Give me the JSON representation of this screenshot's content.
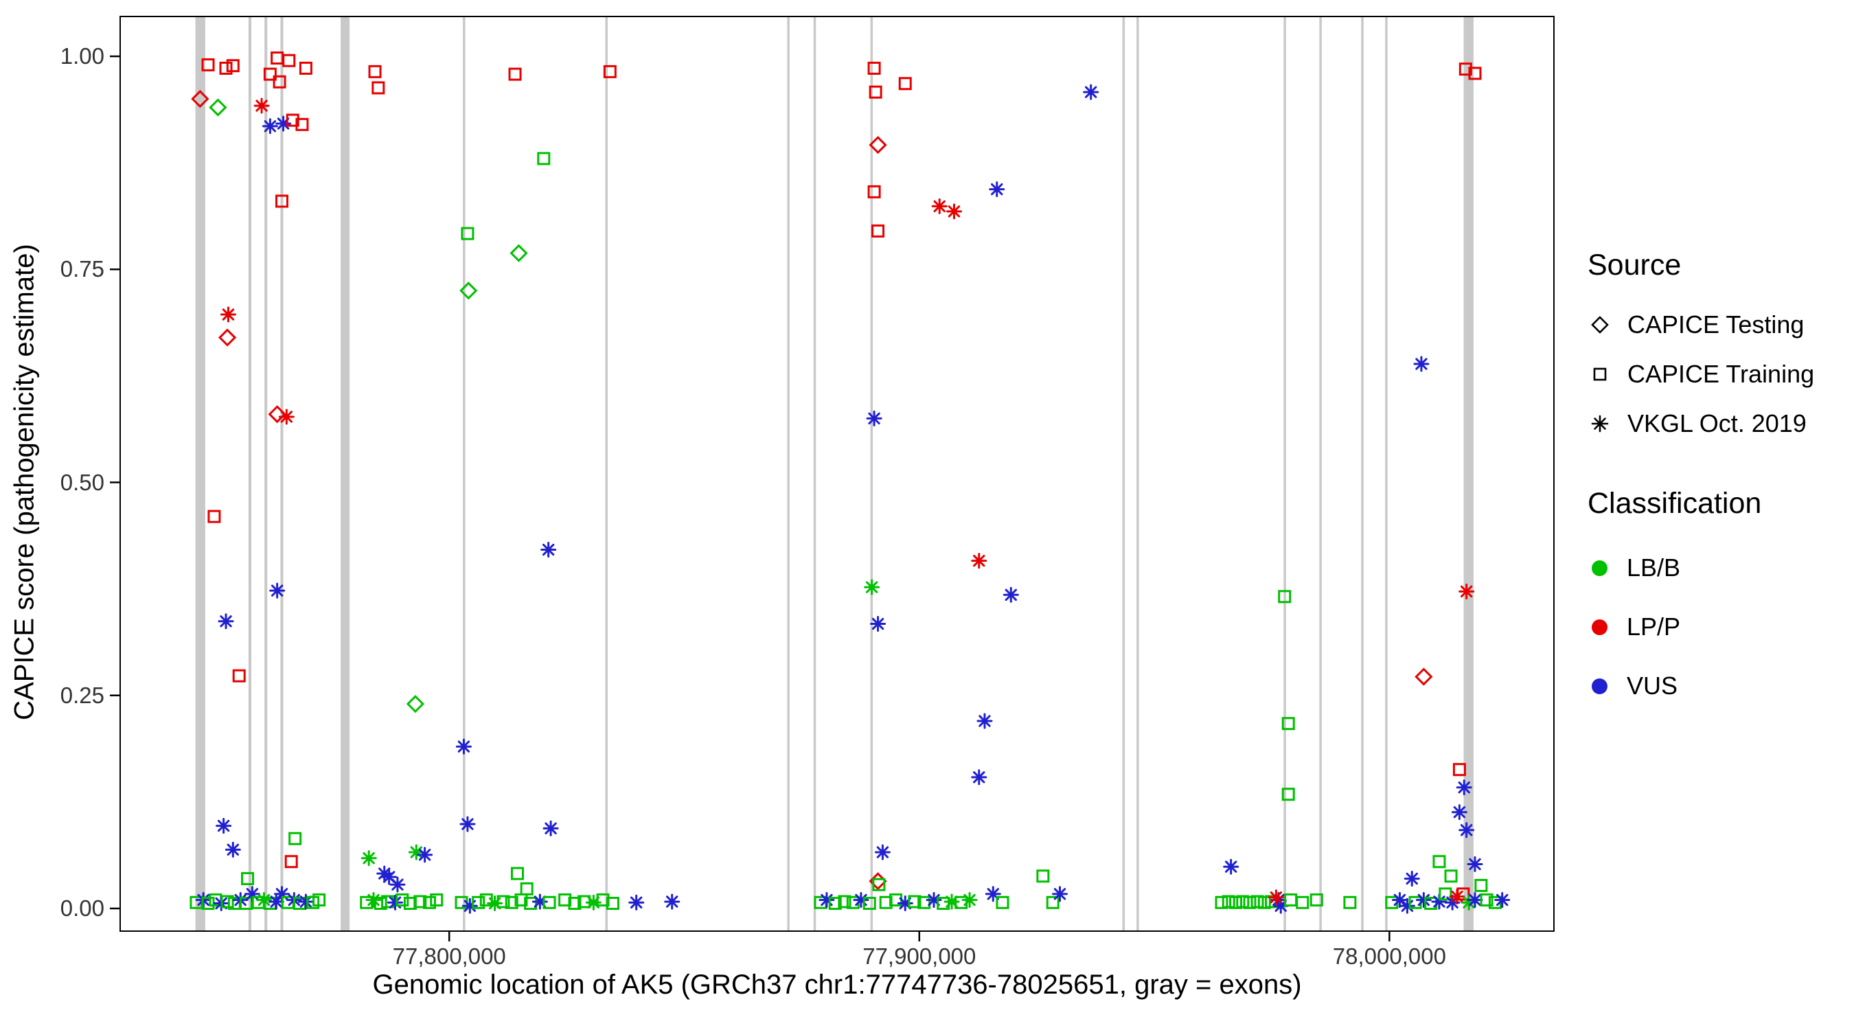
{
  "legend": {
    "source_title": "Source",
    "source_items": [
      {
        "shape": "di",
        "label": "CAPICE Testing"
      },
      {
        "shape": "sq",
        "label": "CAPICE Training"
      },
      {
        "shape": "as",
        "label": "VKGL Oct. 2019"
      }
    ],
    "classification_title": "Classification",
    "classification_items": [
      {
        "color": "g",
        "label": "LB/B"
      },
      {
        "color": "r",
        "label": "LP/P"
      },
      {
        "color": "b",
        "label": "VUS"
      }
    ]
  },
  "colors": {
    "g": "#00C000",
    "r": "#E60000",
    "b": "#2020D0",
    "exon": "#C9C9C9"
  },
  "chart_data": {
    "type": "scatter",
    "title": "",
    "xlabel": "Genomic location of AK5 (GRCh37 chr1:77747736-78025651, gray = exons)",
    "ylabel": "CAPICE score (pathogenicity estimate)",
    "xlim": [
      77730000,
      78035000
    ],
    "ylim": [
      -0.027,
      1.047
    ],
    "grid": false,
    "legend_position": "right",
    "x_ticks": [
      {
        "value": 77800000,
        "label": "77,800,000"
      },
      {
        "value": 77900000,
        "label": "77,900,000"
      },
      {
        "value": 78000000,
        "label": "78,000,000"
      }
    ],
    "y_ticks": [
      {
        "value": 0.0,
        "label": "0.00"
      },
      {
        "value": 0.25,
        "label": "0.25"
      },
      {
        "value": 0.5,
        "label": "0.50"
      },
      {
        "value": 0.75,
        "label": "0.75"
      },
      {
        "value": 1.0,
        "label": "1.00"
      }
    ],
    "exons": [
      [
        77746000,
        77748100
      ],
      [
        77757300,
        77757900
      ],
      [
        77760700,
        77761300
      ],
      [
        77764100,
        77764700
      ],
      [
        77776900,
        77778800
      ],
      [
        77802900,
        77803400
      ],
      [
        77833200,
        77833700
      ],
      [
        77871900,
        77872400
      ],
      [
        77877500,
        77878000
      ],
      [
        77889600,
        77890100
      ],
      [
        77943200,
        77943700
      ],
      [
        77946200,
        77946700
      ],
      [
        77977500,
        77978000
      ],
      [
        77985100,
        77985600
      ],
      [
        77994000,
        77994500
      ],
      [
        77999100,
        77999600
      ],
      [
        78015800,
        78017900
      ]
    ],
    "shape_codes": {
      "di": "CAPICE Testing",
      "sq": "CAPICE Training",
      "as": "VKGL Oct. 2019"
    },
    "color_codes": {
      "g": "LB/B",
      "r": "LP/P",
      "b": "VUS"
    },
    "points": [
      [
        77747000,
        0.95,
        "di",
        "r"
      ],
      [
        77750800,
        0.94,
        "di",
        "g"
      ],
      [
        77748700,
        0.99,
        "sq",
        "r"
      ],
      [
        77752500,
        0.986,
        "sq",
        "r"
      ],
      [
        77754000,
        0.989,
        "sq",
        "r"
      ],
      [
        77760100,
        0.942,
        "as",
        "r"
      ],
      [
        77761900,
        0.979,
        "sq",
        "r"
      ],
      [
        77763400,
        0.998,
        "sq",
        "r"
      ],
      [
        77763900,
        0.97,
        "sq",
        "r"
      ],
      [
        77765900,
        0.995,
        "sq",
        "r"
      ],
      [
        77769500,
        0.986,
        "sq",
        "r"
      ],
      [
        77761900,
        0.918,
        "as",
        "b"
      ],
      [
        77764700,
        0.921,
        "as",
        "b"
      ],
      [
        77766700,
        0.925,
        "sq",
        "r"
      ],
      [
        77768700,
        0.92,
        "sq",
        "r"
      ],
      [
        77764400,
        0.83,
        "sq",
        "r"
      ],
      [
        77753000,
        0.697,
        "as",
        "r"
      ],
      [
        77752800,
        0.67,
        "di",
        "r"
      ],
      [
        77763400,
        0.58,
        "di",
        "r"
      ],
      [
        77765400,
        0.577,
        "as",
        "r"
      ],
      [
        77750000,
        0.46,
        "sq",
        "r"
      ],
      [
        77763400,
        0.373,
        "as",
        "b"
      ],
      [
        77752500,
        0.337,
        "as",
        "b"
      ],
      [
        77755300,
        0.273,
        "sq",
        "r"
      ],
      [
        77752000,
        0.097,
        "as",
        "b"
      ],
      [
        77754000,
        0.069,
        "as",
        "b"
      ],
      [
        77757100,
        0.035,
        "sq",
        "g"
      ],
      [
        77767200,
        0.082,
        "sq",
        "g"
      ],
      [
        77766400,
        0.055,
        "sq",
        "r"
      ],
      [
        77746200,
        0.007,
        "sq",
        "g"
      ],
      [
        77747700,
        0.01,
        "as",
        "b"
      ],
      [
        77748700,
        0.006,
        "sq",
        "g"
      ],
      [
        77750300,
        0.01,
        "sq",
        "g"
      ],
      [
        77751500,
        0.006,
        "as",
        "b"
      ],
      [
        77752800,
        0.008,
        "sq",
        "g"
      ],
      [
        77754300,
        0.006,
        "sq",
        "g"
      ],
      [
        77755600,
        0.01,
        "as",
        "b"
      ],
      [
        77756800,
        0.006,
        "sq",
        "g"
      ],
      [
        77758100,
        0.017,
        "as",
        "b"
      ],
      [
        77759400,
        0.007,
        "sq",
        "g"
      ],
      [
        77760600,
        0.01,
        "as",
        "g"
      ],
      [
        77761900,
        0.006,
        "sq",
        "g"
      ],
      [
        77763200,
        0.008,
        "as",
        "b"
      ],
      [
        77764400,
        0.017,
        "as",
        "b"
      ],
      [
        77765700,
        0.007,
        "sq",
        "g"
      ],
      [
        77767000,
        0.01,
        "as",
        "b"
      ],
      [
        77768200,
        0.006,
        "sq",
        "g"
      ],
      [
        77769500,
        0.008,
        "as",
        "b"
      ],
      [
        77771000,
        0.007,
        "sq",
        "g"
      ],
      [
        77772300,
        0.01,
        "sq",
        "g"
      ],
      [
        77784200,
        0.982,
        "sq",
        "r"
      ],
      [
        77784900,
        0.963,
        "sq",
        "r"
      ],
      [
        77792800,
        0.24,
        "di",
        "g"
      ],
      [
        77782900,
        0.059,
        "as",
        "g"
      ],
      [
        77786200,
        0.041,
        "as",
        "b"
      ],
      [
        77787200,
        0.037,
        "as",
        "b"
      ],
      [
        77789000,
        0.028,
        "as",
        "b"
      ],
      [
        77793000,
        0.066,
        "as",
        "g"
      ],
      [
        77794800,
        0.063,
        "as",
        "b"
      ],
      [
        77782400,
        0.007,
        "sq",
        "g"
      ],
      [
        77783900,
        0.01,
        "as",
        "g"
      ],
      [
        77785400,
        0.006,
        "sq",
        "g"
      ],
      [
        77786900,
        0.008,
        "sq",
        "g"
      ],
      [
        77788500,
        0.007,
        "as",
        "b"
      ],
      [
        77790000,
        0.01,
        "sq",
        "g"
      ],
      [
        77791700,
        0.006,
        "sq",
        "g"
      ],
      [
        77793800,
        0.008,
        "sq",
        "g"
      ],
      [
        77795800,
        0.007,
        "sq",
        "g"
      ],
      [
        77797300,
        0.01,
        "sq",
        "g"
      ],
      [
        77803900,
        0.792,
        "sq",
        "g"
      ],
      [
        77804100,
        0.725,
        "di",
        "g"
      ],
      [
        77814800,
        0.769,
        "di",
        "g"
      ],
      [
        77820100,
        0.88,
        "sq",
        "g"
      ],
      [
        77814000,
        0.979,
        "sq",
        "r"
      ],
      [
        77834200,
        0.982,
        "sq",
        "r"
      ],
      [
        77821100,
        0.421,
        "as",
        "b"
      ],
      [
        77803100,
        0.19,
        "as",
        "b"
      ],
      [
        77803900,
        0.099,
        "as",
        "b"
      ],
      [
        77821600,
        0.094,
        "as",
        "b"
      ],
      [
        77814500,
        0.041,
        "sq",
        "g"
      ],
      [
        77816500,
        0.023,
        "sq",
        "g"
      ],
      [
        77802600,
        0.007,
        "sq",
        "g"
      ],
      [
        77804400,
        0.003,
        "as",
        "b"
      ],
      [
        77806200,
        0.007,
        "sq",
        "g"
      ],
      [
        77807900,
        0.01,
        "sq",
        "g"
      ],
      [
        77809700,
        0.006,
        "as",
        "g"
      ],
      [
        77811500,
        0.008,
        "sq",
        "g"
      ],
      [
        77813300,
        0.007,
        "sq",
        "g"
      ],
      [
        77815300,
        0.01,
        "sq",
        "g"
      ],
      [
        77817300,
        0.006,
        "sq",
        "g"
      ],
      [
        77819300,
        0.008,
        "as",
        "b"
      ],
      [
        77821300,
        0.007,
        "sq",
        "g"
      ],
      [
        77824600,
        0.01,
        "sq",
        "g"
      ],
      [
        77826700,
        0.006,
        "sq",
        "g"
      ],
      [
        77828700,
        0.008,
        "sq",
        "g"
      ],
      [
        77830700,
        0.007,
        "as",
        "g"
      ],
      [
        77832700,
        0.01,
        "sq",
        "g"
      ],
      [
        77834800,
        0.006,
        "sq",
        "g"
      ],
      [
        77839800,
        0.007,
        "as",
        "b"
      ],
      [
        77847400,
        0.008,
        "as",
        "b"
      ],
      [
        77890400,
        0.986,
        "sq",
        "r"
      ],
      [
        77890700,
        0.958,
        "sq",
        "r"
      ],
      [
        77897000,
        0.968,
        "sq",
        "r"
      ],
      [
        77891200,
        0.896,
        "di",
        "r"
      ],
      [
        77890400,
        0.841,
        "sq",
        "r"
      ],
      [
        77904300,
        0.824,
        "as",
        "r"
      ],
      [
        77907400,
        0.818,
        "as",
        "r"
      ],
      [
        77891200,
        0.795,
        "sq",
        "r"
      ],
      [
        77916500,
        0.844,
        "as",
        "b"
      ],
      [
        77936500,
        0.958,
        "as",
        "b"
      ],
      [
        77890400,
        0.575,
        "as",
        "b"
      ],
      [
        77889900,
        0.377,
        "as",
        "g"
      ],
      [
        77891200,
        0.334,
        "as",
        "b"
      ],
      [
        77912700,
        0.408,
        "as",
        "r"
      ],
      [
        77919500,
        0.368,
        "as",
        "b"
      ],
      [
        77913900,
        0.22,
        "as",
        "b"
      ],
      [
        77912700,
        0.154,
        "as",
        "b"
      ],
      [
        77892200,
        0.066,
        "as",
        "b"
      ],
      [
        77891200,
        0.032,
        "di",
        "r"
      ],
      [
        77891400,
        0.028,
        "sq",
        "g"
      ],
      [
        77879000,
        0.007,
        "sq",
        "g"
      ],
      [
        77880300,
        0.01,
        "as",
        "b"
      ],
      [
        77882100,
        0.006,
        "sq",
        "g"
      ],
      [
        77884100,
        0.008,
        "sq",
        "g"
      ],
      [
        77885900,
        0.007,
        "sq",
        "g"
      ],
      [
        77887600,
        0.01,
        "as",
        "b"
      ],
      [
        77889400,
        0.006,
        "sq",
        "g"
      ],
      [
        77892900,
        0.007,
        "sq",
        "g"
      ],
      [
        77895000,
        0.01,
        "sq",
        "g"
      ],
      [
        77897000,
        0.006,
        "as",
        "b"
      ],
      [
        77899000,
        0.008,
        "sq",
        "g"
      ],
      [
        77901000,
        0.007,
        "sq",
        "g"
      ],
      [
        77903100,
        0.01,
        "as",
        "b"
      ],
      [
        77905100,
        0.006,
        "sq",
        "g"
      ],
      [
        77906900,
        0.008,
        "as",
        "g"
      ],
      [
        77908900,
        0.007,
        "sq",
        "g"
      ],
      [
        77910700,
        0.01,
        "as",
        "g"
      ],
      [
        77915700,
        0.017,
        "as",
        "b"
      ],
      [
        77917700,
        0.007,
        "sq",
        "g"
      ],
      [
        77926300,
        0.038,
        "sq",
        "g"
      ],
      [
        77928400,
        0.007,
        "sq",
        "g"
      ],
      [
        77929900,
        0.017,
        "as",
        "b"
      ],
      [
        77966300,
        0.049,
        "as",
        "b"
      ],
      [
        77977700,
        0.366,
        "sq",
        "g"
      ],
      [
        77978500,
        0.217,
        "sq",
        "g"
      ],
      [
        77978500,
        0.134,
        "sq",
        "g"
      ],
      [
        77964300,
        0.007,
        "sq",
        "g"
      ],
      [
        77965800,
        0.008,
        "sq",
        "g"
      ],
      [
        77967300,
        0.007,
        "sq",
        "g"
      ],
      [
        77968800,
        0.008,
        "sq",
        "g"
      ],
      [
        77970300,
        0.007,
        "sq",
        "g"
      ],
      [
        77971900,
        0.008,
        "sq",
        "g"
      ],
      [
        77973400,
        0.007,
        "sq",
        "g"
      ],
      [
        77974900,
        0.008,
        "sq",
        "g"
      ],
      [
        77976400,
        0.01,
        "as",
        "b"
      ],
      [
        77976900,
        0.003,
        "as",
        "b"
      ],
      [
        77975900,
        0.013,
        "as",
        "r"
      ],
      [
        77979000,
        0.01,
        "sq",
        "g"
      ],
      [
        77981500,
        0.007,
        "sq",
        "g"
      ],
      [
        77984500,
        0.01,
        "sq",
        "g"
      ],
      [
        77991600,
        0.007,
        "sq",
        "g"
      ],
      [
        78006800,
        0.639,
        "as",
        "b"
      ],
      [
        78007300,
        0.272,
        "di",
        "r"
      ],
      [
        78016400,
        0.372,
        "as",
        "r"
      ],
      [
        78016200,
        0.985,
        "sq",
        "r"
      ],
      [
        78018200,
        0.98,
        "sq",
        "r"
      ],
      [
        78014900,
        0.163,
        "sq",
        "r"
      ],
      [
        78015900,
        0.142,
        "as",
        "b"
      ],
      [
        78014900,
        0.113,
        "as",
        "b"
      ],
      [
        78016400,
        0.092,
        "as",
        "b"
      ],
      [
        78018200,
        0.052,
        "as",
        "b"
      ],
      [
        78004800,
        0.035,
        "as",
        "b"
      ],
      [
        78010600,
        0.055,
        "sq",
        "g"
      ],
      [
        78013100,
        0.038,
        "sq",
        "g"
      ],
      [
        78000500,
        0.007,
        "sq",
        "g"
      ],
      [
        78002200,
        0.01,
        "as",
        "b"
      ],
      [
        78003800,
        0.003,
        "as",
        "b"
      ],
      [
        78005500,
        0.007,
        "sq",
        "g"
      ],
      [
        78007300,
        0.01,
        "as",
        "b"
      ],
      [
        78008800,
        0.006,
        "sq",
        "g"
      ],
      [
        78010600,
        0.008,
        "as",
        "b"
      ],
      [
        78011900,
        0.017,
        "sq",
        "g"
      ],
      [
        78013400,
        0.007,
        "as",
        "b"
      ],
      [
        78014400,
        0.014,
        "as",
        "r"
      ],
      [
        78015700,
        0.017,
        "sq",
        "r"
      ],
      [
        78016900,
        0.007,
        "as",
        "g"
      ],
      [
        78018200,
        0.01,
        "as",
        "b"
      ],
      [
        78019500,
        0.027,
        "sq",
        "g"
      ],
      [
        78020700,
        0.01,
        "sq",
        "g"
      ],
      [
        78022500,
        0.007,
        "sq",
        "g"
      ],
      [
        78024000,
        0.01,
        "as",
        "b"
      ]
    ]
  }
}
